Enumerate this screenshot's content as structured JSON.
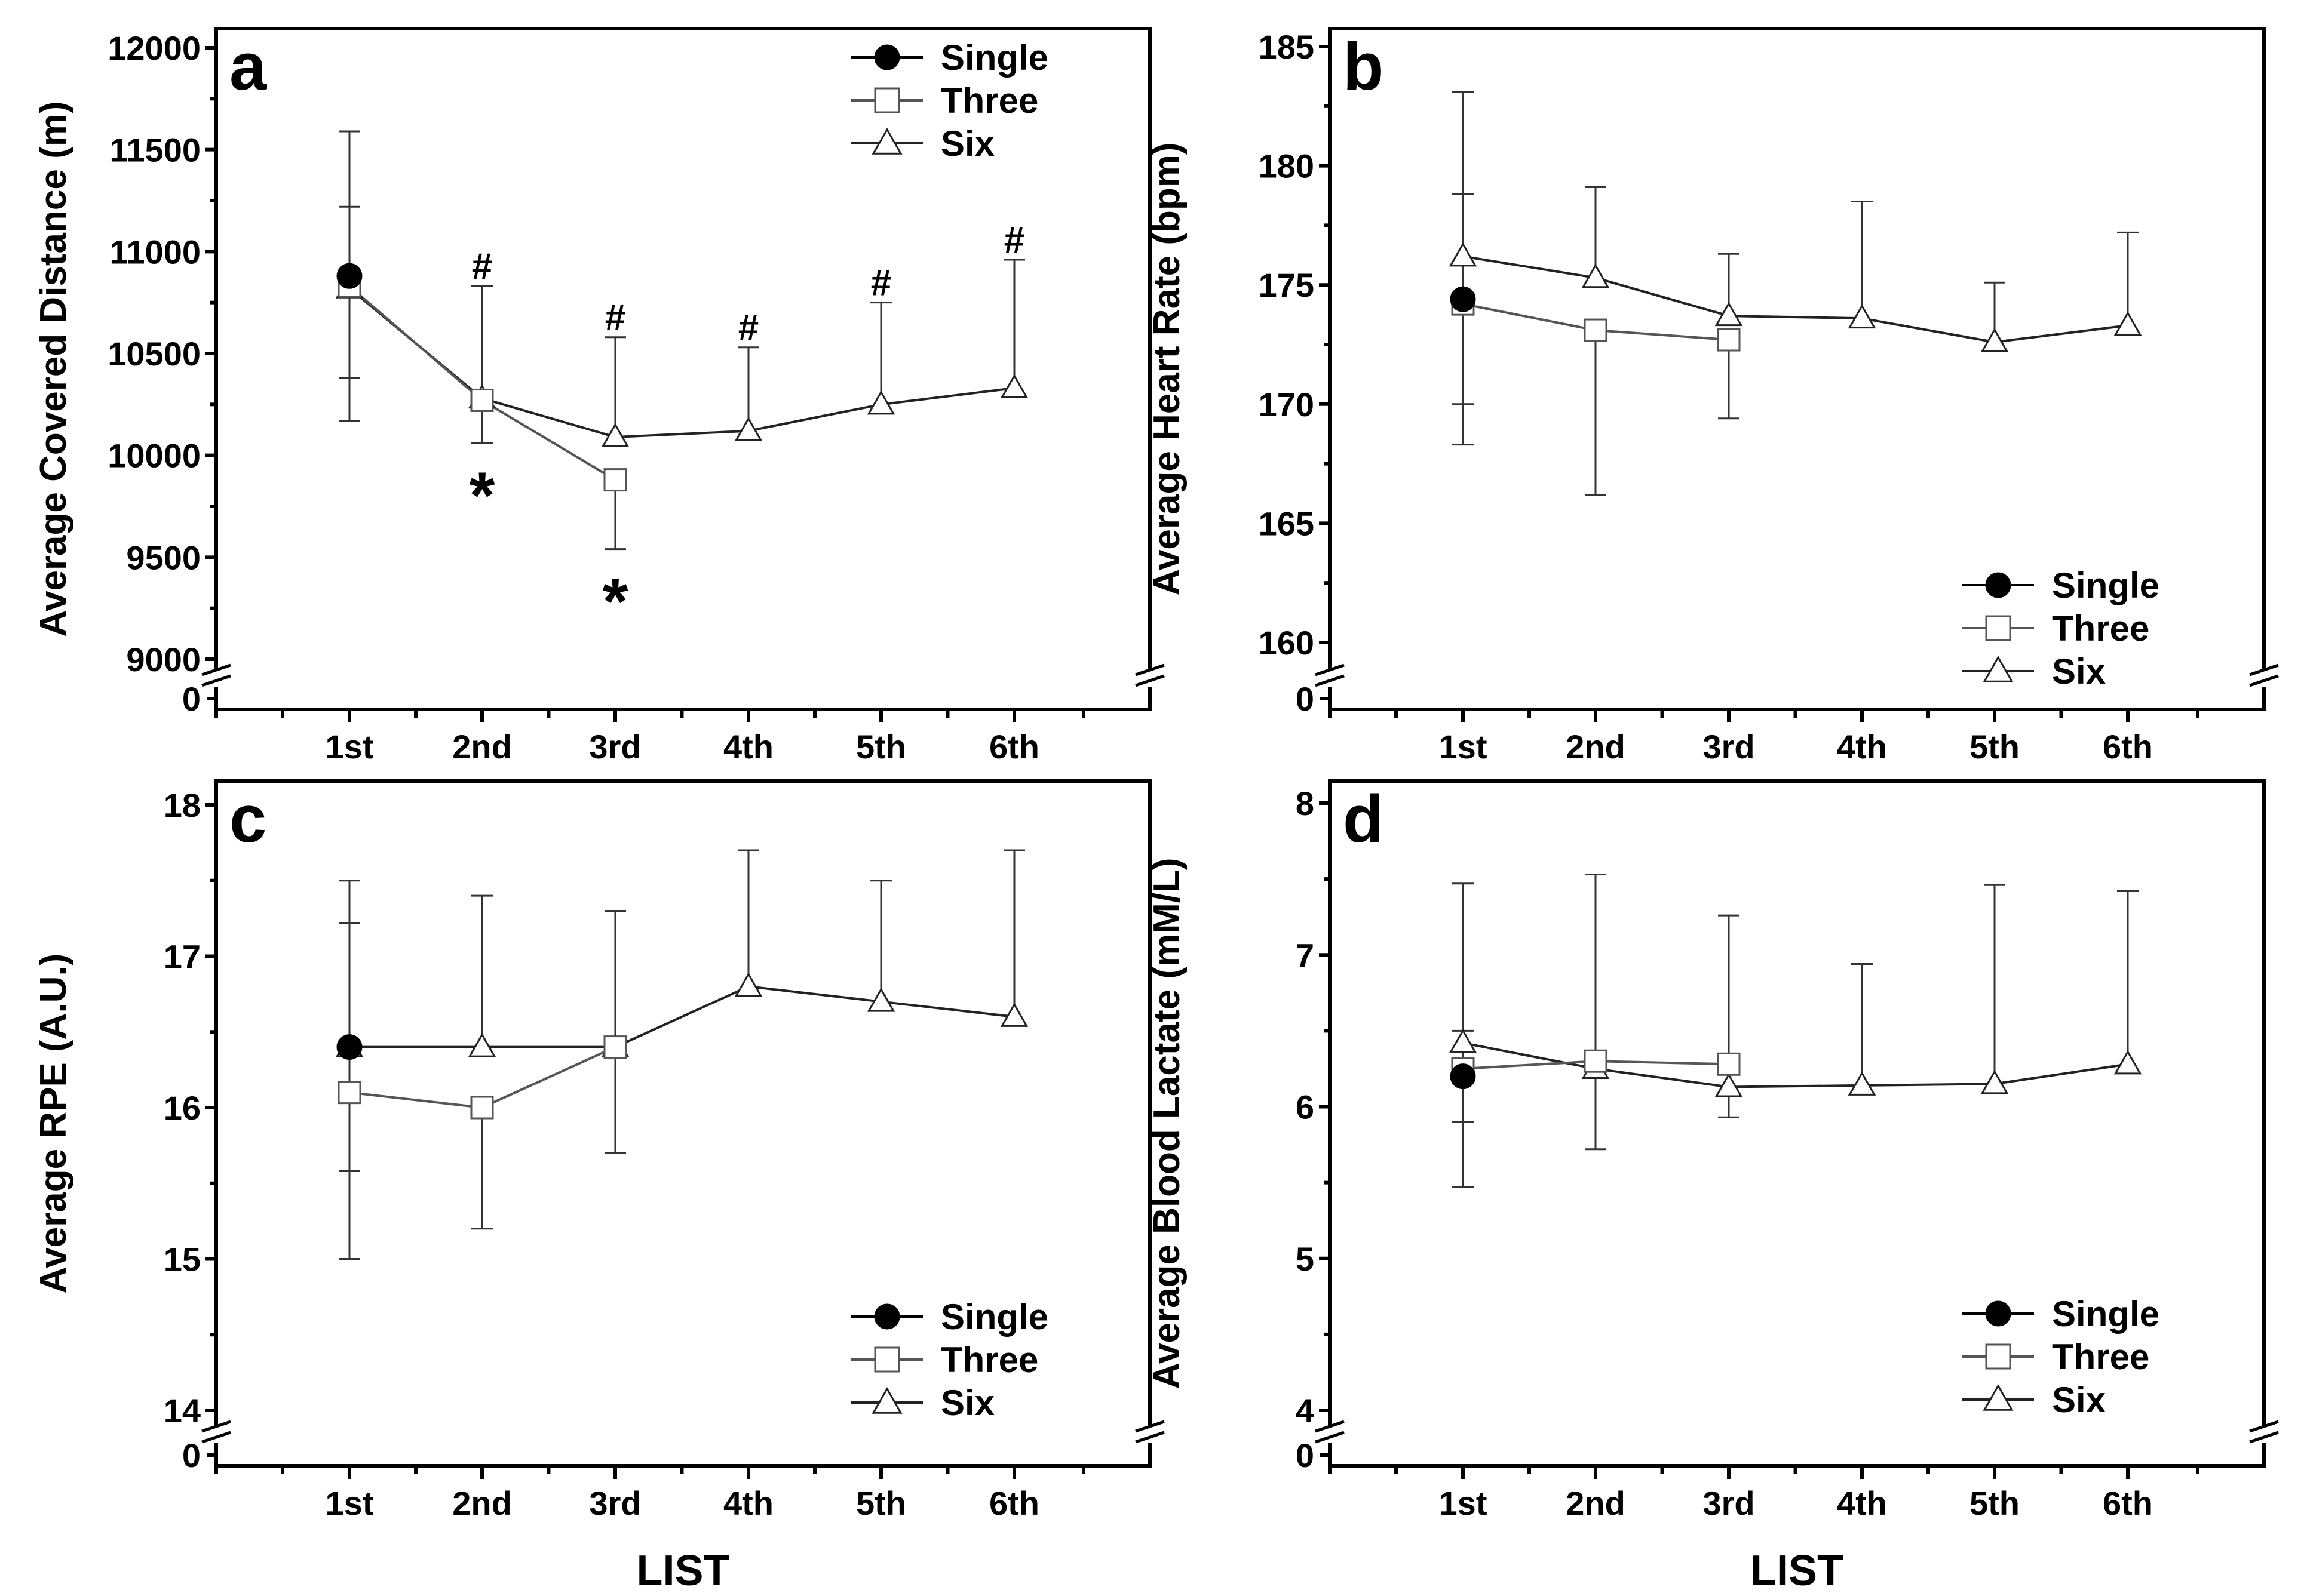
{
  "x_axis_label": "LIST",
  "legend_labels": [
    "Single",
    "Three",
    "Six"
  ],
  "chart_data": [
    {
      "type": "line",
      "panel_label": "a",
      "ylabel": "Average Covered Distance (m)",
      "categories": [
        "1st",
        "2nd",
        "3rd",
        "4th",
        "5th",
        "6th"
      ],
      "ylim": [
        9000,
        12000
      ],
      "yticks": [
        "9000",
        "9500",
        "10000",
        "10500",
        "11000",
        "11500",
        "12000"
      ],
      "axis_break_label": "0",
      "legend_position": "top-right",
      "series": [
        {
          "name": "Single",
          "values": [
            10880,
            null,
            null,
            null,
            null,
            null
          ],
          "upper": [
            11220,
            null,
            null,
            null,
            null,
            null
          ],
          "lower": [
            null,
            null,
            null,
            null,
            null,
            null
          ]
        },
        {
          "name": "Three",
          "values": [
            10830,
            10270,
            9880,
            null,
            null,
            null
          ],
          "upper": [
            null,
            null,
            null,
            null,
            null,
            null
          ],
          "lower": [
            10380,
            10060,
            9540,
            null,
            null,
            null
          ]
        },
        {
          "name": "Six",
          "values": [
            10820,
            10280,
            10090,
            10120,
            10250,
            10330
          ],
          "upper": [
            11590,
            10830,
            10580,
            10530,
            10750,
            10960
          ],
          "lower": [
            10170,
            null,
            null,
            null,
            null,
            null
          ]
        }
      ],
      "annotations": [
        {
          "text": "#",
          "category": "2nd",
          "y": 10930,
          "size": "small"
        },
        {
          "text": "#",
          "category": "3rd",
          "y": 10680,
          "size": "small"
        },
        {
          "text": "#",
          "category": "4th",
          "y": 10630,
          "size": "small"
        },
        {
          "text": "#",
          "category": "5th",
          "y": 10850,
          "size": "small"
        },
        {
          "text": "#",
          "category": "6th",
          "y": 11060,
          "size": "small"
        },
        {
          "text": "*",
          "category": "2nd",
          "y": 9840,
          "size": "large"
        },
        {
          "text": "*",
          "category": "3rd",
          "y": 9320,
          "size": "large"
        }
      ]
    },
    {
      "type": "line",
      "panel_label": "b",
      "ylabel": "Average Heart Rate (bpm)",
      "categories": [
        "1st",
        "2nd",
        "3rd",
        "4th",
        "5th",
        "6th"
      ],
      "ylim": [
        160,
        185
      ],
      "yticks": [
        "160",
        "165",
        "170",
        "175",
        "180",
        "185"
      ],
      "axis_break_label": "0",
      "legend_position": "bottom-right",
      "series": [
        {
          "name": "Single",
          "values": [
            174.4,
            null,
            null,
            null,
            null,
            null
          ],
          "upper": [
            null,
            null,
            null,
            null,
            null,
            null
          ],
          "lower": [
            170.0,
            null,
            null,
            null,
            null,
            null
          ]
        },
        {
          "name": "Three",
          "values": [
            174.2,
            173.1,
            172.7,
            null,
            null,
            null
          ],
          "upper": [
            178.8,
            null,
            null,
            null,
            null,
            null
          ],
          "lower": [
            168.3,
            166.2,
            169.4,
            null,
            null,
            null
          ]
        },
        {
          "name": "Six",
          "values": [
            176.2,
            175.3,
            173.7,
            173.6,
            172.6,
            173.3
          ],
          "upper": [
            183.1,
            179.1,
            176.3,
            178.5,
            175.1,
            177.2
          ],
          "lower": [
            null,
            null,
            null,
            null,
            null,
            null
          ]
        }
      ],
      "annotations": []
    },
    {
      "type": "line",
      "panel_label": "c",
      "ylabel": "Average RPE (A.U.)",
      "categories": [
        "1st",
        "2nd",
        "3rd",
        "4th",
        "5th",
        "6th"
      ],
      "ylim": [
        14,
        18
      ],
      "yticks": [
        "14",
        "15",
        "16",
        "17",
        "18"
      ],
      "axis_break_label": "0",
      "legend_position": "bottom-right",
      "series": [
        {
          "name": "Single",
          "values": [
            16.4,
            null,
            null,
            null,
            null,
            null
          ],
          "upper": [
            17.22,
            null,
            null,
            null,
            null,
            null
          ],
          "lower": [
            15.58,
            null,
            null,
            null,
            null,
            null
          ]
        },
        {
          "name": "Three",
          "values": [
            16.1,
            16.0,
            16.4,
            null,
            null,
            null
          ],
          "upper": [
            null,
            null,
            null,
            null,
            null,
            null
          ],
          "lower": [
            15.0,
            15.2,
            15.7,
            null,
            null,
            null
          ]
        },
        {
          "name": "Six",
          "values": [
            16.4,
            16.4,
            16.4,
            16.8,
            16.7,
            16.6
          ],
          "upper": [
            17.5,
            17.4,
            17.3,
            17.7,
            17.5,
            17.7
          ],
          "lower": [
            null,
            null,
            null,
            null,
            null,
            null
          ]
        }
      ],
      "annotations": []
    },
    {
      "type": "line",
      "panel_label": "d",
      "ylabel": "Average Blood Lactate (mM/L)",
      "categories": [
        "1st",
        "2nd",
        "3rd",
        "4th",
        "5th",
        "6th"
      ],
      "ylim": [
        4,
        8
      ],
      "yticks": [
        "4",
        "5",
        "6",
        "7",
        "8"
      ],
      "axis_break_label": "0",
      "legend_position": "bottom-right",
      "series": [
        {
          "name": "Single",
          "values": [
            6.2,
            null,
            null,
            null,
            null,
            null
          ],
          "upper": [
            6.5,
            null,
            null,
            null,
            null,
            null
          ],
          "lower": [
            5.9,
            null,
            null,
            null,
            null,
            null
          ]
        },
        {
          "name": "Three",
          "values": [
            6.25,
            6.3,
            6.28,
            null,
            null,
            null
          ],
          "upper": [
            null,
            null,
            null,
            null,
            null,
            null
          ],
          "lower": [
            5.47,
            5.72,
            5.93,
            null,
            null,
            null
          ]
        },
        {
          "name": "Six",
          "values": [
            6.42,
            6.25,
            6.13,
            6.14,
            6.15,
            6.28
          ],
          "upper": [
            7.47,
            7.53,
            7.26,
            6.94,
            7.46,
            7.42
          ],
          "lower": [
            null,
            null,
            null,
            null,
            null,
            null
          ]
        }
      ],
      "annotations": []
    }
  ]
}
